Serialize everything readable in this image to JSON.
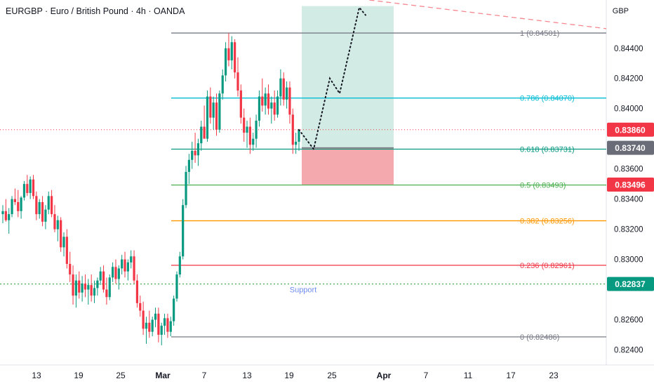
{
  "header": {
    "symbol_line": "EURGBP · Euro / British Pound · 4h · OANDA",
    "currency": "GBP"
  },
  "colors": {
    "bull": "#089981",
    "bear": "#f23645",
    "grid_text": "#131722",
    "fib_1": "#787b86",
    "fib_0786": "#00bcd4",
    "fib_0618": "#089981",
    "fib_05": "#4caf50",
    "fib_0382": "#ff9800",
    "fib_0236": "#f23645",
    "fib_0": "#787b86",
    "profit_zone": "#cde9e1",
    "loss_zone": "#f2a4aa",
    "support_line": "#4caf50",
    "trend_line": "#f7868f"
  },
  "chart_data": {
    "type": "candlestick",
    "y_range": [
      0.823,
      0.8472
    ],
    "y_ticks": [
      "0.84400",
      "0.84200",
      "0.84000",
      "0.83600",
      "0.83400",
      "0.83200",
      "0.83000",
      "0.82600",
      "0.82400"
    ],
    "x_ticks": [
      {
        "label": "13",
        "bold": false
      },
      {
        "label": "19",
        "bold": false
      },
      {
        "label": "25",
        "bold": false
      },
      {
        "label": "Mar",
        "bold": true
      },
      {
        "label": "7",
        "bold": false
      },
      {
        "label": "13",
        "bold": false
      },
      {
        "label": "19",
        "bold": false
      },
      {
        "label": "25",
        "bold": false
      },
      {
        "label": "Apr",
        "bold": true
      },
      {
        "label": "7",
        "bold": false
      },
      {
        "label": "11",
        "bold": false
      },
      {
        "label": "17",
        "bold": false
      },
      {
        "label": "23",
        "bold": false
      }
    ],
    "fib_levels": [
      {
        "ratio": "1",
        "price": 0.84501,
        "label": "1 (0.84501)",
        "color_key": "fib_1"
      },
      {
        "ratio": "0.786",
        "price": 0.8407,
        "label": "0.786 (0.84070)",
        "color_key": "fib_0786"
      },
      {
        "ratio": "0.618",
        "price": 0.83731,
        "label": "0.618 (0.83731)",
        "color_key": "fib_0618"
      },
      {
        "ratio": "0.5",
        "price": 0.83493,
        "label": "0.5 (0.83493)",
        "color_key": "fib_05"
      },
      {
        "ratio": "0.382",
        "price": 0.83256,
        "label": "0.382 (0.83256)",
        "color_key": "fib_0382"
      },
      {
        "ratio": "0.236",
        "price": 0.82961,
        "label": "0.236 (0.82961)",
        "color_key": "fib_0236"
      },
      {
        "ratio": "0",
        "price": 0.82486,
        "label": "0 (0.82486)",
        "color_key": "fib_0"
      }
    ],
    "price_tags": [
      {
        "label": "0.83860",
        "price": 0.8386,
        "color": "#f23645"
      },
      {
        "label": "0.83740",
        "price": 0.8374,
        "color": "#6a6d78"
      },
      {
        "label": "0.83496",
        "price": 0.83496,
        "color": "#f23645"
      },
      {
        "label": "0.82837",
        "price": 0.82837,
        "color": "#089981"
      }
    ],
    "current_price": 0.8386,
    "support": {
      "price": 0.82837,
      "label": "Support"
    },
    "position": {
      "entry": 0.8374,
      "target": 0.8468,
      "stop": 0.83496
    },
    "projection_path": [
      0.8386,
      0.83731,
      0.842,
      0.841,
      0.8467,
      0.8462
    ],
    "trend_line": {
      "from_price": 0.8476,
      "to_price": 0.8453
    },
    "candles_ohlc": [
      [
        0.833,
        0.8336,
        0.8324,
        0.8332
      ],
      [
        0.8332,
        0.834,
        0.8325,
        0.8326
      ],
      [
        0.8326,
        0.8334,
        0.8317,
        0.833
      ],
      [
        0.833,
        0.8342,
        0.8328,
        0.834
      ],
      [
        0.834,
        0.8347,
        0.8336,
        0.8338
      ],
      [
        0.8338,
        0.8346,
        0.8328,
        0.8332
      ],
      [
        0.8332,
        0.8342,
        0.8327,
        0.8341
      ],
      [
        0.8341,
        0.8352,
        0.8339,
        0.835
      ],
      [
        0.835,
        0.8356,
        0.8342,
        0.8344
      ],
      [
        0.8344,
        0.8355,
        0.834,
        0.8353
      ],
      [
        0.8353,
        0.8356,
        0.834,
        0.8342
      ],
      [
        0.8342,
        0.8345,
        0.8326,
        0.833
      ],
      [
        0.833,
        0.834,
        0.8327,
        0.8338
      ],
      [
        0.8338,
        0.8342,
        0.8322,
        0.8325
      ],
      [
        0.8325,
        0.8336,
        0.832,
        0.8333
      ],
      [
        0.8333,
        0.8345,
        0.833,
        0.8342
      ],
      [
        0.8342,
        0.8346,
        0.8328,
        0.833
      ],
      [
        0.833,
        0.8336,
        0.8318,
        0.832
      ],
      [
        0.832,
        0.8329,
        0.8312,
        0.8326
      ],
      [
        0.8326,
        0.8328,
        0.8305,
        0.8308
      ],
      [
        0.8308,
        0.8318,
        0.8302,
        0.8315
      ],
      [
        0.8315,
        0.832,
        0.8294,
        0.8297
      ],
      [
        0.8297,
        0.8305,
        0.8285,
        0.829
      ],
      [
        0.829,
        0.8296,
        0.827,
        0.8276
      ],
      [
        0.8276,
        0.829,
        0.8268,
        0.8286
      ],
      [
        0.8286,
        0.8292,
        0.8274,
        0.8278
      ],
      [
        0.8278,
        0.8289,
        0.8272,
        0.8284
      ],
      [
        0.8284,
        0.829,
        0.8275,
        0.828
      ],
      [
        0.828,
        0.8287,
        0.827,
        0.8283
      ],
      [
        0.8283,
        0.829,
        0.8272,
        0.8276
      ],
      [
        0.8276,
        0.8286,
        0.8271,
        0.8281
      ],
      [
        0.8281,
        0.8288,
        0.8276,
        0.8286
      ],
      [
        0.8286,
        0.8295,
        0.8283,
        0.8292
      ],
      [
        0.8292,
        0.8296,
        0.8278,
        0.828
      ],
      [
        0.828,
        0.8288,
        0.827,
        0.8275
      ],
      [
        0.8275,
        0.829,
        0.8273,
        0.8288
      ],
      [
        0.8288,
        0.8298,
        0.8285,
        0.8295
      ],
      [
        0.8295,
        0.83,
        0.8284,
        0.8287
      ],
      [
        0.8287,
        0.8296,
        0.828,
        0.8294
      ],
      [
        0.8294,
        0.8303,
        0.829,
        0.83
      ],
      [
        0.83,
        0.8305,
        0.8288,
        0.8292
      ],
      [
        0.8292,
        0.83,
        0.8286,
        0.8298
      ],
      [
        0.8298,
        0.8306,
        0.8294,
        0.8302
      ],
      [
        0.8302,
        0.8306,
        0.8284,
        0.8286
      ],
      [
        0.8286,
        0.829,
        0.8268,
        0.8271
      ],
      [
        0.8271,
        0.8276,
        0.8262,
        0.8266
      ],
      [
        0.8266,
        0.8272,
        0.825,
        0.8254
      ],
      [
        0.8254,
        0.8262,
        0.8244,
        0.8258
      ],
      [
        0.8258,
        0.8266,
        0.8248,
        0.8252
      ],
      [
        0.8252,
        0.8262,
        0.8249,
        0.826
      ],
      [
        0.826,
        0.8268,
        0.8255,
        0.8264
      ],
      [
        0.8264,
        0.8268,
        0.8245,
        0.825
      ],
      [
        0.825,
        0.8258,
        0.8243,
        0.8256
      ],
      [
        0.8256,
        0.8264,
        0.825,
        0.8261
      ],
      [
        0.8261,
        0.8264,
        0.8248,
        0.8252
      ],
      [
        0.8252,
        0.8262,
        0.8249,
        0.8259
      ],
      [
        0.8259,
        0.8276,
        0.8256,
        0.8274
      ],
      [
        0.8274,
        0.8292,
        0.8272,
        0.829
      ],
      [
        0.829,
        0.8305,
        0.8288,
        0.8302
      ],
      [
        0.8302,
        0.834,
        0.83,
        0.8336
      ],
      [
        0.8336,
        0.8362,
        0.8334,
        0.8358
      ],
      [
        0.8358,
        0.837,
        0.835,
        0.8366
      ],
      [
        0.8366,
        0.8378,
        0.836,
        0.8372
      ],
      [
        0.8372,
        0.8384,
        0.8364,
        0.8369
      ],
      [
        0.8369,
        0.838,
        0.8362,
        0.8377
      ],
      [
        0.8377,
        0.8392,
        0.8372,
        0.8388
      ],
      [
        0.8388,
        0.8402,
        0.8382,
        0.838
      ],
      [
        0.838,
        0.8412,
        0.8378,
        0.8408
      ],
      [
        0.8408,
        0.8414,
        0.839,
        0.8394
      ],
      [
        0.8394,
        0.8408,
        0.8386,
        0.8404
      ],
      [
        0.8404,
        0.841,
        0.8382,
        0.8386
      ],
      [
        0.8386,
        0.8412,
        0.8384,
        0.841
      ],
      [
        0.841,
        0.8426,
        0.8406,
        0.8422
      ],
      [
        0.8422,
        0.8444,
        0.8418,
        0.844
      ],
      [
        0.844,
        0.845,
        0.8428,
        0.8432
      ],
      [
        0.8432,
        0.8448,
        0.8426,
        0.8444
      ],
      [
        0.8444,
        0.8446,
        0.842,
        0.8424
      ],
      [
        0.8424,
        0.8434,
        0.8408,
        0.8412
      ],
      [
        0.8412,
        0.8416,
        0.839,
        0.8394
      ],
      [
        0.8394,
        0.84,
        0.8378,
        0.8384
      ],
      [
        0.8384,
        0.8392,
        0.8374,
        0.8388
      ],
      [
        0.8388,
        0.8394,
        0.837,
        0.8376
      ],
      [
        0.8376,
        0.8384,
        0.8372,
        0.838
      ],
      [
        0.838,
        0.8396,
        0.8374,
        0.8392
      ],
      [
        0.8392,
        0.8412,
        0.8388,
        0.8408
      ],
      [
        0.8408,
        0.842,
        0.8398,
        0.8402
      ],
      [
        0.8402,
        0.8414,
        0.8396,
        0.841
      ],
      [
        0.841,
        0.8416,
        0.8396,
        0.84
      ],
      [
        0.84,
        0.8408,
        0.839,
        0.8404
      ],
      [
        0.8404,
        0.8412,
        0.8392,
        0.8396
      ],
      [
        0.8396,
        0.8412,
        0.8394,
        0.8408
      ],
      [
        0.8408,
        0.8426,
        0.8402,
        0.842
      ],
      [
        0.842,
        0.8424,
        0.8402,
        0.8406
      ],
      [
        0.8406,
        0.8418,
        0.84,
        0.8414
      ],
      [
        0.8414,
        0.8418,
        0.839,
        0.8396
      ],
      [
        0.8396,
        0.84,
        0.837,
        0.8376
      ],
      [
        0.8376,
        0.8384,
        0.837,
        0.8378
      ],
      [
        0.8378,
        0.8385,
        0.8372,
        0.8386
      ]
    ]
  }
}
